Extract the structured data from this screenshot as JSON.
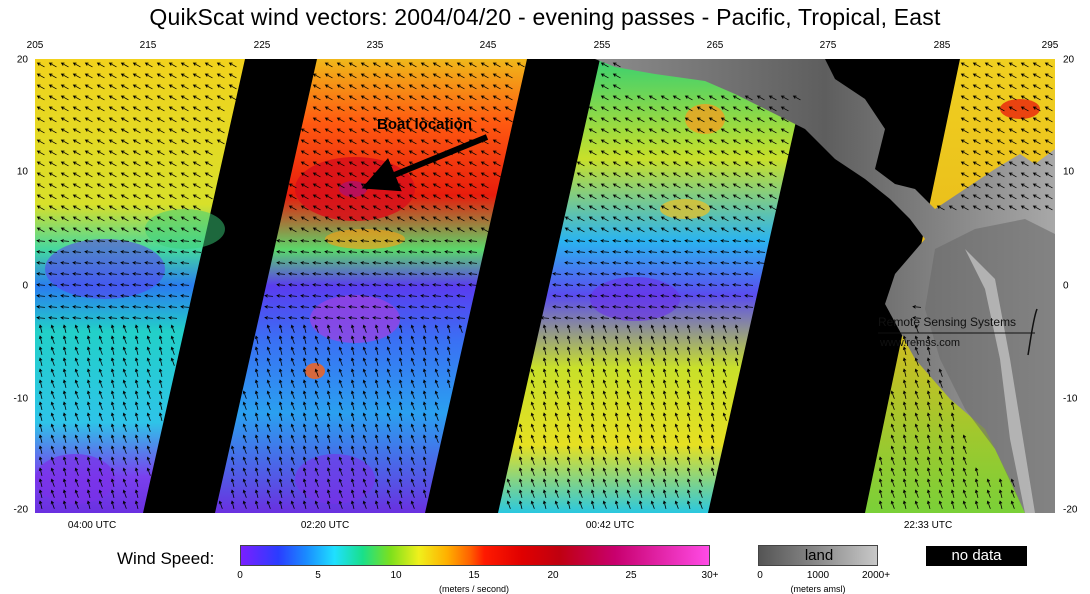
{
  "title": "QuikScat wind vectors: 2004/04/20 - evening passes - Pacific, Tropical, East",
  "lon_ticks": [
    "205",
    "215",
    "225",
    "235",
    "245",
    "255",
    "265",
    "275",
    "285",
    "295"
  ],
  "lat_ticks_left": [
    "20",
    "10",
    "0",
    "-10",
    "-20"
  ],
  "lat_ticks_right": [
    "20",
    "10",
    "0",
    "-10",
    "-20"
  ],
  "utc_labels": [
    "04:00 UTC",
    "02:20 UTC",
    "00:42 UTC",
    "22:33 UTC"
  ],
  "annotation": "Boat location",
  "credit": {
    "name": "Remote Sensing Systems",
    "url": "www.remss.com"
  },
  "legend": {
    "wind_label": "Wind Speed:",
    "wind_ticks": [
      "0",
      "5",
      "10",
      "15",
      "20",
      "25",
      "30+"
    ],
    "wind_units": "(meters / second)",
    "land_label": "land",
    "land_ticks": [
      "0",
      "1000",
      "2000+"
    ],
    "land_units": "(meters amsl)",
    "nodata_label": "no data"
  },
  "map_extent": {
    "lon": [
      205,
      295
    ],
    "lat": [
      -20,
      20
    ]
  },
  "colors": {
    "no_data": "#000000",
    "land": "#8a8a8a",
    "arrow": "#000000"
  }
}
